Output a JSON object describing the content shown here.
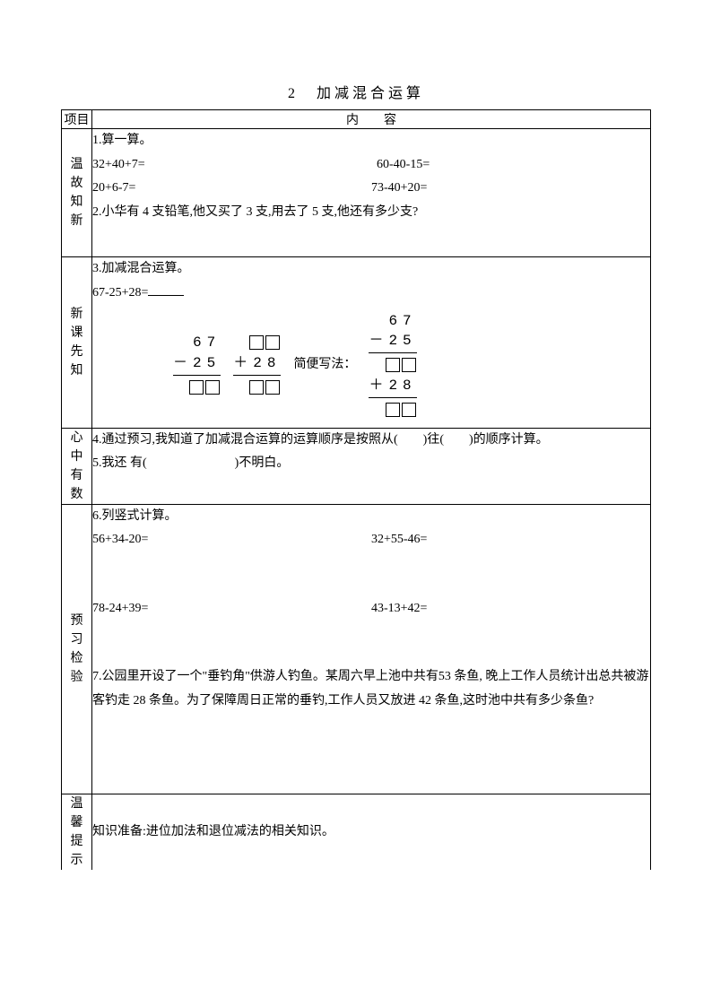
{
  "title": "2　加减混合运算",
  "headers": {
    "col1": "项目",
    "col2": "内　　容"
  },
  "sections": {
    "s1": {
      "label": "温故知新",
      "q1_label": "1.算一算。",
      "q1a": "32+40+7=",
      "q1b": "60-40-15=",
      "q1c": "20+6-7=",
      "q1d": "73-40+20=",
      "q2": "2.小华有 4 支铅笔,他又买了 3 支,用去了 5 支,他还有多少支?"
    },
    "s2": {
      "label": "新课先知",
      "q3_label": "3.加减混合运算。",
      "q3_expr": "67-25+28=",
      "short_label": "简便写法：",
      "n67": "67",
      "n25": "－25",
      "n28": "＋28",
      "n28b": "＋28",
      "n25b": "－25"
    },
    "s3": {
      "label": "心中有数",
      "q4": "4.通过预习,我知道了加减混合运算的运算顺序是按照从(　　)往(　　)的顺序计算。",
      "q5": "5.我还 有(　　　　　　　)不明白。"
    },
    "s4": {
      "label": "预习检验",
      "q6_label": "6.列竖式计算。",
      "q6a": "56+34-20=",
      "q6b": "32+55-46=",
      "q6c": "78-24+39=",
      "q6d": "43-13+42=",
      "q7": "7.公园里开设了一个\"垂钓角\"供游人钓鱼。某周六早上池中共有53 条鱼, 晚上工作人员统计出总共被游客钓走 28 条鱼。为了保障周日正常的垂钓,工作人员又放进 42 条鱼,这时池中共有多少条鱼?"
    },
    "s5": {
      "label": "温馨提示",
      "text": "知识准备:进位加法和退位减法的相关知识。"
    }
  },
  "colors": {
    "text": "#000000",
    "bg": "#ffffff",
    "border": "#000000"
  }
}
